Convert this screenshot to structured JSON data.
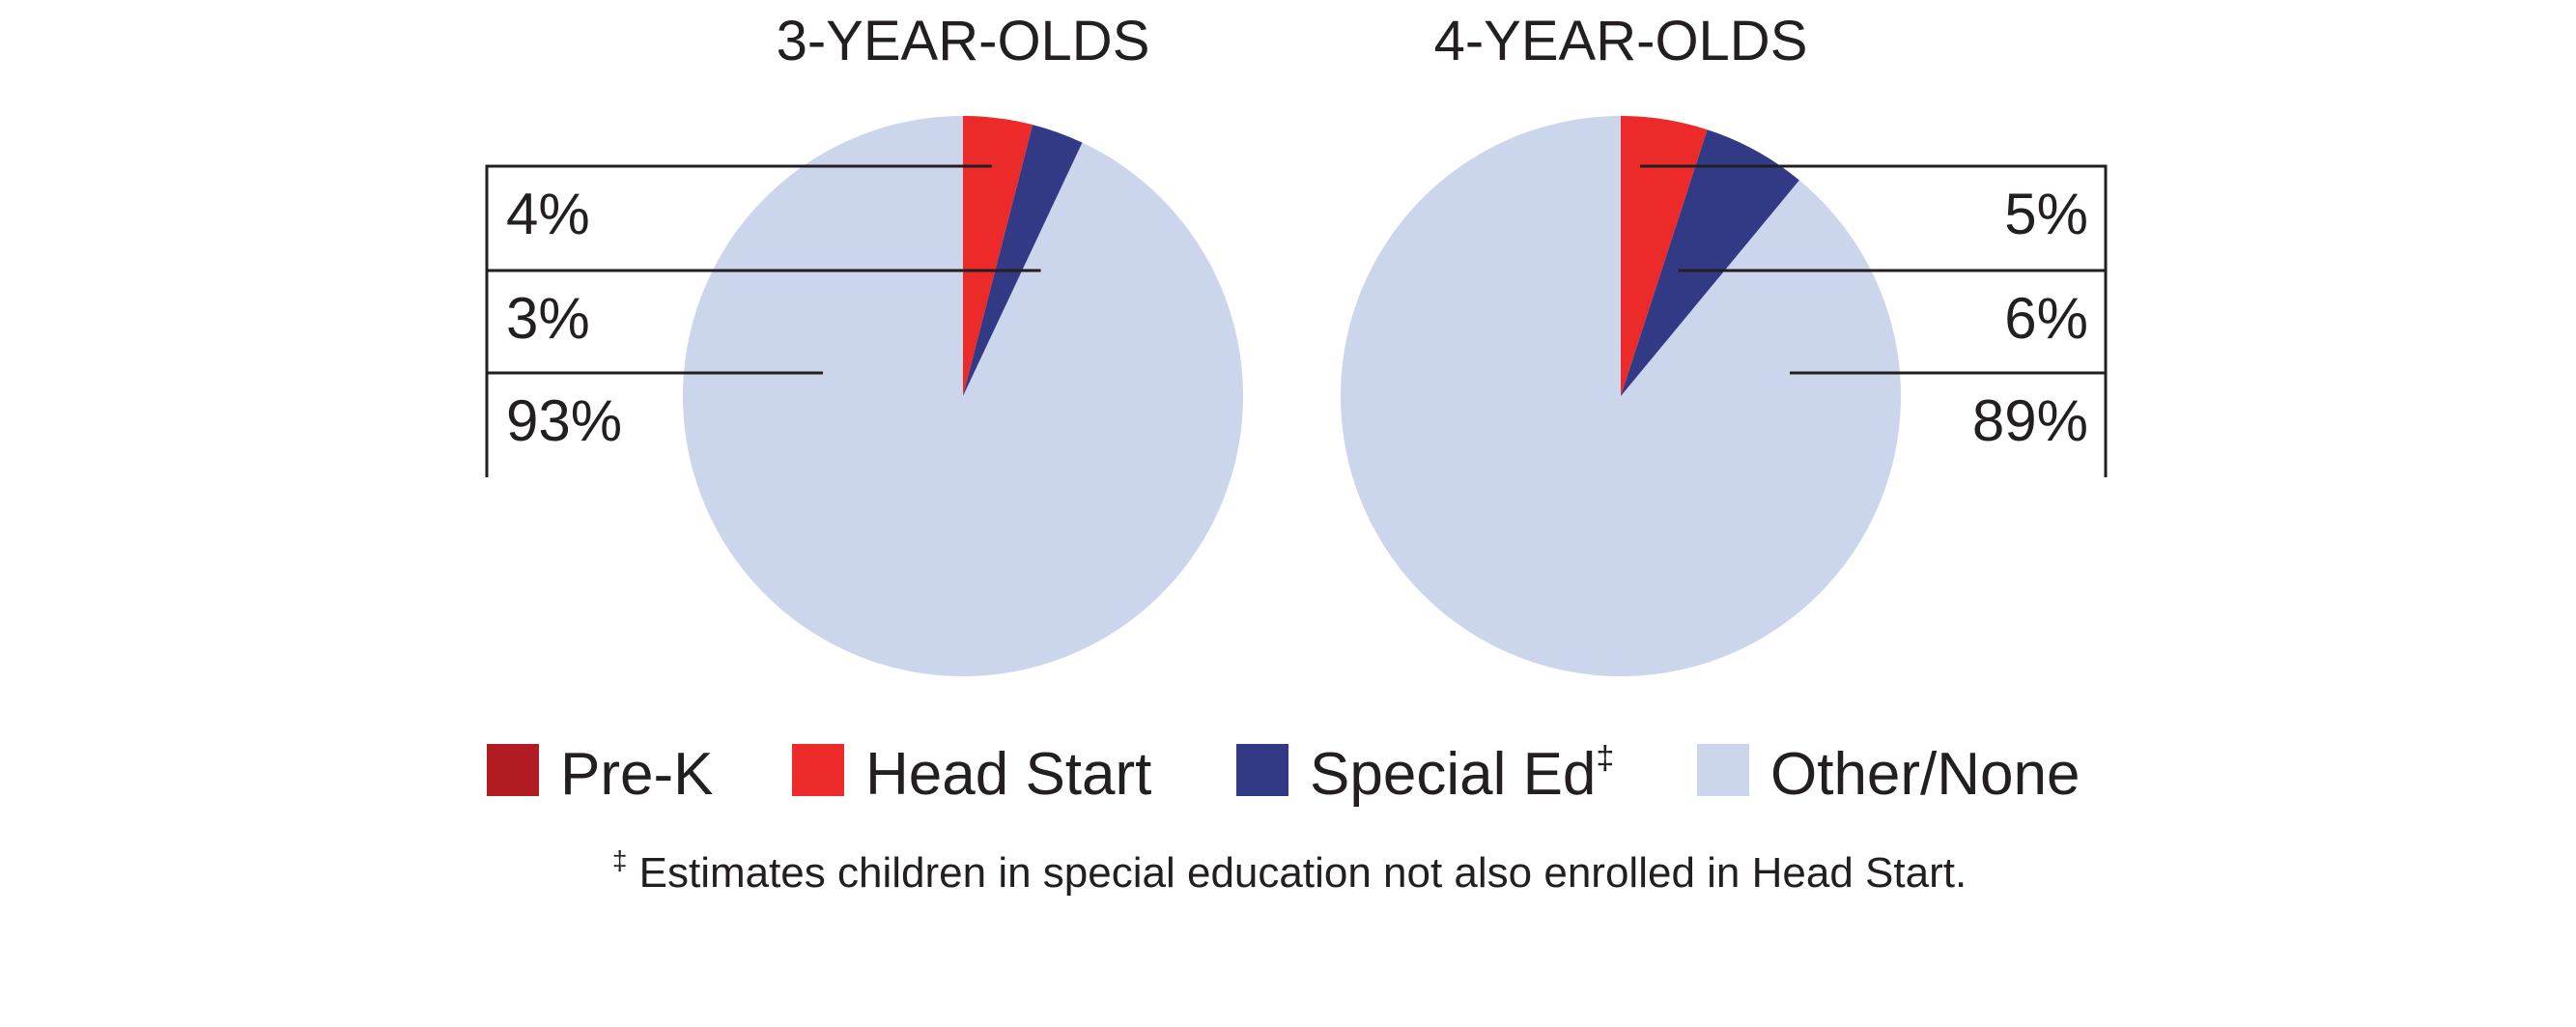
{
  "colors": {
    "pre_k": "#b01c22",
    "head_start": "#ed2a2a",
    "special_ed": "#323a86",
    "other_none": "#cbd5eb"
  },
  "legend": [
    {
      "key": "pre_k",
      "label": "Pre-K",
      "superscript": ""
    },
    {
      "key": "head_start",
      "label": "Head Start",
      "superscript": ""
    },
    {
      "key": "special_ed",
      "label": "Special Ed",
      "superscript": "‡"
    },
    {
      "key": "other_none",
      "label": "Other/None",
      "superscript": ""
    }
  ],
  "footnote": {
    "mark": "‡",
    "text": " Estimates children in special education not also enrolled in Head Start."
  },
  "chart_data": [
    {
      "type": "pie",
      "title": "3-YEAR-OLDS",
      "labels_side": "left",
      "slices": [
        {
          "category": "Head Start",
          "key": "head_start",
          "value": 4,
          "label": "4%"
        },
        {
          "category": "Special Ed",
          "key": "special_ed",
          "value": 3,
          "label": "3%"
        },
        {
          "category": "Other/None",
          "key": "other_none",
          "value": 93,
          "label": "93%"
        }
      ]
    },
    {
      "type": "pie",
      "title": "4-YEAR-OLDS",
      "labels_side": "right",
      "slices": [
        {
          "category": "Head Start",
          "key": "head_start",
          "value": 5,
          "label": "5%"
        },
        {
          "category": "Special Ed",
          "key": "special_ed",
          "value": 6,
          "label": "6%"
        },
        {
          "category": "Other/None",
          "key": "other_none",
          "value": 89,
          "label": "89%"
        }
      ]
    }
  ]
}
